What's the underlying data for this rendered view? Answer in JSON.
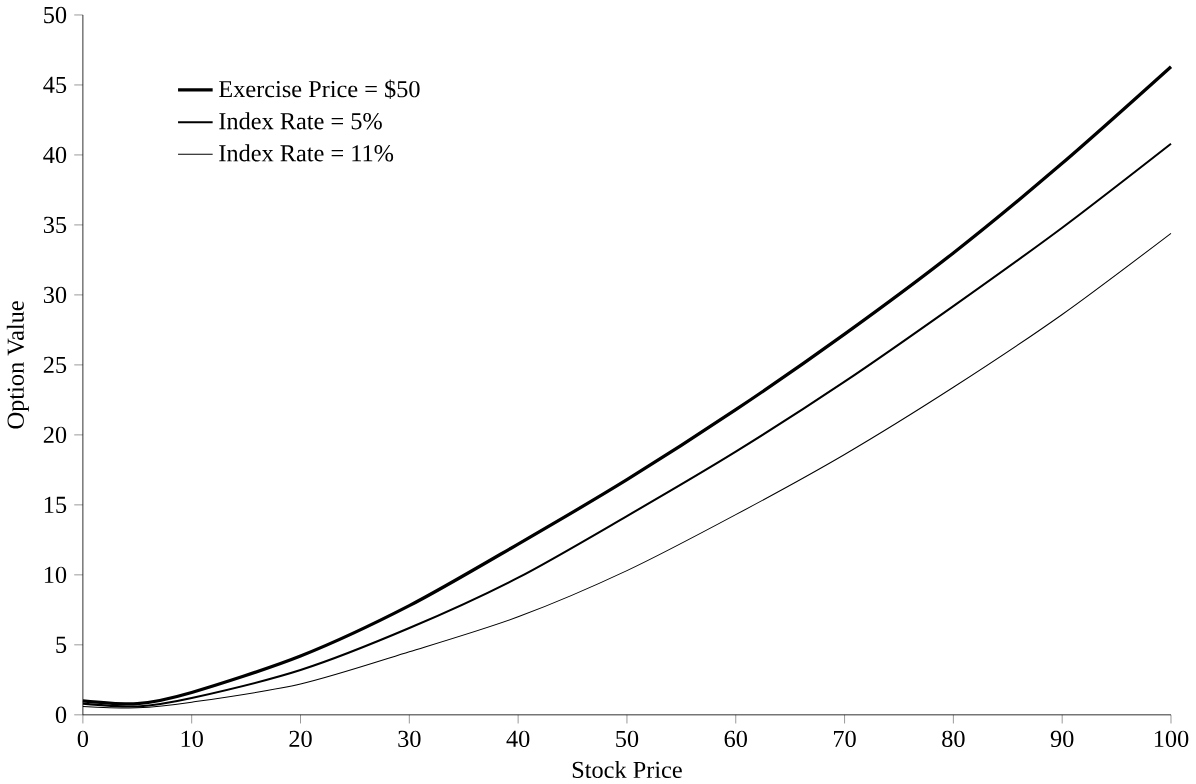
{
  "chart_data": {
    "type": "line",
    "xlabel": "Stock Price",
    "ylabel": "Option Value",
    "x": [
      0,
      5,
      10,
      20,
      30,
      40,
      50,
      60,
      70,
      80,
      90,
      100
    ],
    "series": [
      {
        "name": "Exercise Price = $50",
        "color": "#000000",
        "values": [
          1.0,
          0.8,
          1.6,
          4.2,
          7.8,
          12.2,
          16.8,
          21.8,
          27.2,
          33.0,
          39.4,
          46.3
        ]
      },
      {
        "name": "Index Rate = 5%",
        "color": "#000000",
        "values": [
          0.8,
          0.6,
          1.2,
          3.2,
          6.2,
          9.8,
          14.2,
          18.8,
          23.8,
          29.2,
          34.8,
          40.8
        ]
      },
      {
        "name": "Index Rate = 11%",
        "color": "#000000",
        "values": [
          0.6,
          0.5,
          0.9,
          2.2,
          4.5,
          7.0,
          10.3,
          14.3,
          18.6,
          23.4,
          28.6,
          34.4
        ]
      }
    ],
    "xlim": [
      0,
      100
    ],
    "ylim": [
      0,
      50
    ],
    "xticks": [
      0,
      10,
      20,
      30,
      40,
      50,
      60,
      70,
      80,
      90,
      100
    ],
    "yticks": [
      0,
      5,
      10,
      15,
      20,
      25,
      30,
      35,
      40,
      45,
      50
    ],
    "grid": false,
    "legend": "top left",
    "marker": "none",
    "line_style": "solid"
  }
}
